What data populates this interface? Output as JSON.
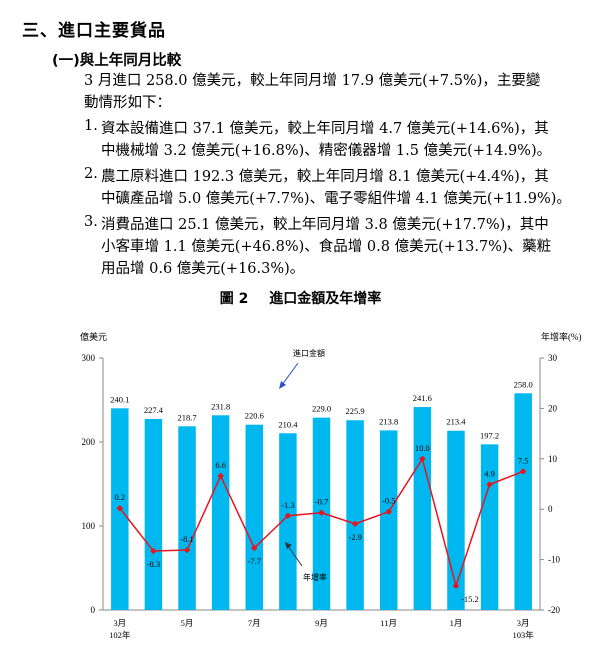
{
  "section_heading": "三、進口主要貨品",
  "subsection_heading": "(一)與上年同月比較",
  "intro_line1": "3 月進口 258.0 億美元，較上年同月增 17.9 億美元(+7.5%)，主要變",
  "intro_line2": "動情形如下：",
  "items": [
    {
      "num": "1.",
      "line1": "資本設備進口 37.1 億美元，較上年同月增 4.7 億美元(+14.6%)，其",
      "line2": "中機械增 3.2 億美元(+16.8%)、精密儀器增 1.5 億美元(+14.9%)。"
    },
    {
      "num": "2.",
      "line1": "農工原料進口 192.3 億美元，較上年同月增 8.1 億美元(+4.4%)，其",
      "line2": "中礦產品增 5.0 億美元(+7.7%)、電子零組件增 4.1 億美元(+11.9%)。"
    },
    {
      "num": "3.",
      "line1": "消費品進口 25.1 億美元，較上年同月增 3.8 億美元(+17.7%)，其中",
      "line2": "小客車增 1.1 億美元(+46.8%)、食品增 0.8 億美元(+13.7%)、藥粧",
      "line3": "用品增 0.6 億美元(+16.3%)。"
    }
  ],
  "figure_number": "圖 2",
  "figure_title": "進口金額及年增率",
  "chart_data": {
    "type": "bar+line",
    "left_axis_label": "億美元",
    "right_axis_label": "年增率(%)",
    "left_ylim": [
      0,
      300
    ],
    "left_ticks": [
      "300",
      "200",
      "100",
      "0"
    ],
    "right_ylim": [
      -20,
      30
    ],
    "right_ticks": [
      "30",
      "20",
      "10",
      "0",
      "-10",
      "-20"
    ],
    "categories": [
      "3月",
      "",
      "5月",
      "",
      "7月",
      "",
      "9月",
      "",
      "11月",
      "",
      "1月",
      "",
      "3月"
    ],
    "year_labels": {
      "first": "102年",
      "last": "103年"
    },
    "bar_series": {
      "name": "進口金額",
      "color": "#00b8f0",
      "values": [
        240.1,
        227.4,
        218.7,
        231.8,
        220.6,
        210.4,
        229.0,
        225.9,
        213.8,
        241.6,
        213.4,
        197.2,
        258.0
      ],
      "labels": [
        "240.1",
        "227.4",
        "218.7",
        "231.8",
        "220.6",
        "210.4",
        "229.0",
        "225.9",
        "213.8",
        "241.6",
        "213.4",
        "197.2",
        "258.0"
      ]
    },
    "line_series": {
      "name": "年增率",
      "color": "#e8141e",
      "values": [
        0.2,
        -8.3,
        -8.1,
        6.6,
        -7.7,
        -1.3,
        -0.7,
        -2.9,
        -0.5,
        10.0,
        -15.2,
        4.9,
        7.5
      ],
      "labels": [
        "0.2",
        "-8.3",
        "-8.1",
        "6.6",
        "-7.7",
        "-1.3",
        "-0.7",
        "-2.9",
        "-0.5",
        "10.0",
        "-15.2",
        "4.9",
        "7.5"
      ]
    }
  }
}
